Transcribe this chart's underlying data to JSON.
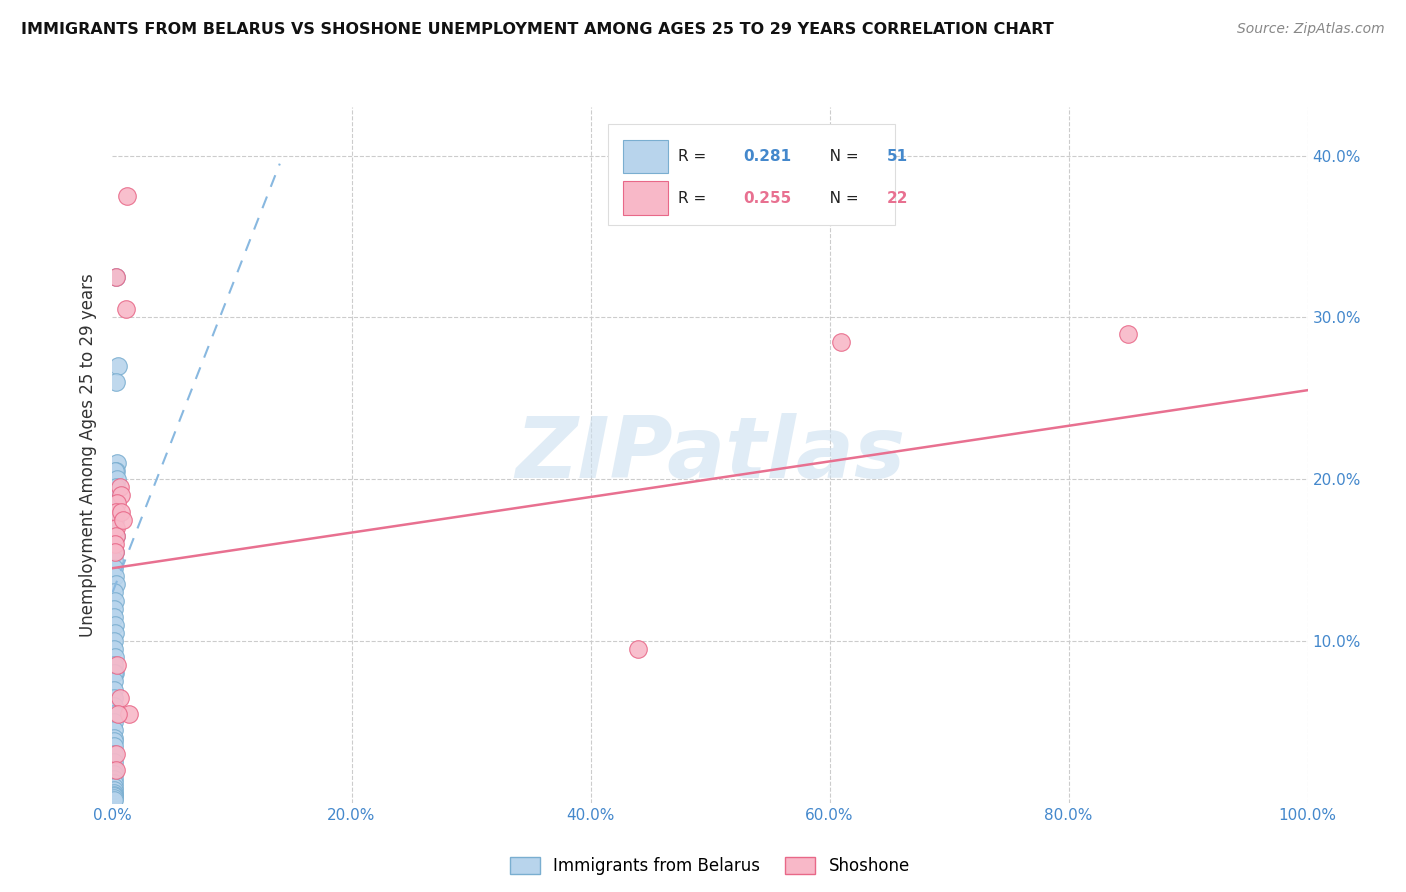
{
  "title": "IMMIGRANTS FROM BELARUS VS SHOSHONE UNEMPLOYMENT AMONG AGES 25 TO 29 YEARS CORRELATION CHART",
  "source": "Source: ZipAtlas.com",
  "ylabel": "Unemployment Among Ages 25 to 29 years",
  "xlabel_ticks": [
    "0.0%",
    "20.0%",
    "40.0%",
    "60.0%",
    "80.0%",
    "100.0%"
  ],
  "xlim": [
    0,
    1.0
  ],
  "ylim": [
    0,
    0.43
  ],
  "blue_R": "0.281",
  "blue_N": "51",
  "pink_R": "0.255",
  "pink_N": "22",
  "blue_fill": "#b8d4ec",
  "pink_fill": "#f8b8c8",
  "blue_edge": "#7aaed0",
  "pink_edge": "#e86888",
  "blue_trend_color": "#88b8e0",
  "pink_trend_color": "#e87090",
  "accent_color": "#4488cc",
  "watermark_color": "#cce0f0",
  "blue_scatter_x": [
    0.003,
    0.005,
    0.003,
    0.004,
    0.003,
    0.002,
    0.004,
    0.003,
    0.002,
    0.002,
    0.003,
    0.002,
    0.001,
    0.001,
    0.002,
    0.003,
    0.001,
    0.002,
    0.001,
    0.001,
    0.002,
    0.002,
    0.001,
    0.001,
    0.002,
    0.001,
    0.002,
    0.001,
    0.001,
    0.001,
    0.001,
    0.001,
    0.001,
    0.001,
    0.001,
    0.001,
    0.001,
    0.001,
    0.001,
    0.001,
    0.001,
    0.001,
    0.001,
    0.001,
    0.001,
    0.001,
    0.001,
    0.001,
    0.001,
    0.001,
    0.001
  ],
  "blue_scatter_y": [
    0.325,
    0.27,
    0.26,
    0.21,
    0.205,
    0.205,
    0.2,
    0.195,
    0.185,
    0.175,
    0.165,
    0.155,
    0.15,
    0.145,
    0.14,
    0.135,
    0.13,
    0.125,
    0.12,
    0.115,
    0.11,
    0.105,
    0.1,
    0.095,
    0.09,
    0.085,
    0.08,
    0.08,
    0.075,
    0.07,
    0.065,
    0.06,
    0.055,
    0.05,
    0.045,
    0.04,
    0.038,
    0.035,
    0.03,
    0.025,
    0.02,
    0.018,
    0.015,
    0.012,
    0.01,
    0.008,
    0.006,
    0.005,
    0.004,
    0.003,
    0.002
  ],
  "pink_scatter_x": [
    0.012,
    0.011,
    0.003,
    0.006,
    0.007,
    0.004,
    0.003,
    0.003,
    0.003,
    0.002,
    0.002,
    0.004,
    0.44,
    0.61,
    0.85,
    0.006,
    0.003,
    0.003,
    0.014,
    0.005,
    0.007,
    0.009
  ],
  "pink_scatter_y": [
    0.375,
    0.305,
    0.325,
    0.195,
    0.19,
    0.185,
    0.18,
    0.17,
    0.165,
    0.16,
    0.155,
    0.085,
    0.095,
    0.285,
    0.29,
    0.065,
    0.03,
    0.02,
    0.055,
    0.055,
    0.18,
    0.175
  ],
  "blue_trend_x": [
    0.0,
    0.14
  ],
  "blue_trend_y": [
    0.13,
    0.395
  ],
  "pink_trend_x": [
    0.0,
    1.0
  ],
  "pink_trend_y": [
    0.145,
    0.255
  ]
}
